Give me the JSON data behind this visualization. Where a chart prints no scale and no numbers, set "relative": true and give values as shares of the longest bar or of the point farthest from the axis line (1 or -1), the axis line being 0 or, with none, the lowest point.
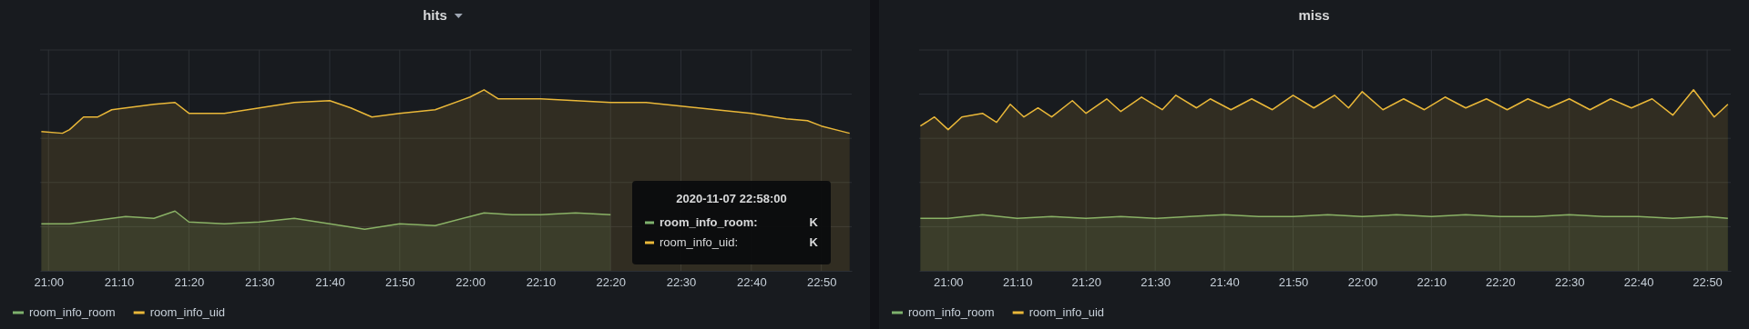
{
  "chart_data": [
    {
      "type": "area",
      "title": "hits",
      "relative": true,
      "grid": true,
      "legend": "bottom",
      "line_style": "solid",
      "xlim": [
        20.98,
        22.905
      ],
      "xticks": [
        {
          "value": 21,
          "label": "21:00"
        },
        {
          "value": 21.167,
          "label": "21:10"
        },
        {
          "value": 21.333,
          "label": "21:20"
        },
        {
          "value": 21.5,
          "label": "21:30"
        },
        {
          "value": 21.667,
          "label": "21:40"
        },
        {
          "value": 21.833,
          "label": "21:50"
        },
        {
          "value": 22,
          "label": "22:00"
        },
        {
          "value": 22.167,
          "label": "22:10"
        },
        {
          "value": 22.333,
          "label": "22:20"
        },
        {
          "value": 22.5,
          "label": "22:30"
        },
        {
          "value": 22.667,
          "label": "22:40"
        },
        {
          "value": 22.833,
          "label": "22:50"
        }
      ],
      "annotations": [
        "2020-11-07 22:58:00",
        "room_info_room:",
        "K",
        "room_info_uid:",
        "K"
      ],
      "series": [
        {
          "name": "room_info_room",
          "color": "#7eb26d",
          "x": [
            20.983,
            21.05,
            21.117,
            21.183,
            21.25,
            21.3,
            21.333,
            21.417,
            21.5,
            21.583,
            21.667,
            21.75,
            21.833,
            21.917,
            22.0,
            22.033,
            22.1,
            22.167,
            22.25,
            22.333
          ],
          "values": [
            0.26,
            0.26,
            0.28,
            0.3,
            0.29,
            0.33,
            0.27,
            0.26,
            0.27,
            0.29,
            0.26,
            0.23,
            0.26,
            0.25,
            0.3,
            0.32,
            0.31,
            0.31,
            0.32,
            0.31
          ]
        },
        {
          "name": "room_info_uid",
          "color": "#eab839",
          "x": [
            20.983,
            21.033,
            21.05,
            21.083,
            21.117,
            21.15,
            21.183,
            21.217,
            21.25,
            21.3,
            21.333,
            21.417,
            21.5,
            21.583,
            21.667,
            21.717,
            21.767,
            21.833,
            21.917,
            22.0,
            22.033,
            22.067,
            22.117,
            22.167,
            22.25,
            22.333,
            22.417,
            22.5,
            22.583,
            22.667,
            22.75,
            22.8,
            22.833,
            22.883,
            22.9
          ],
          "values": [
            0.77,
            0.76,
            0.78,
            0.85,
            0.85,
            0.89,
            0.9,
            0.91,
            0.92,
            0.93,
            0.87,
            0.87,
            0.9,
            0.93,
            0.94,
            0.9,
            0.85,
            0.87,
            0.89,
            0.96,
            1.0,
            0.95,
            0.95,
            0.95,
            0.94,
            0.93,
            0.93,
            0.91,
            0.89,
            0.87,
            0.84,
            0.83,
            0.8,
            0.77,
            0.76
          ]
        }
      ]
    },
    {
      "type": "area",
      "title": "miss",
      "relative": true,
      "grid": true,
      "legend": "bottom",
      "line_style": "solid",
      "xlim": [
        20.93,
        22.89
      ],
      "xticks": [
        {
          "value": 21,
          "label": "21:00"
        },
        {
          "value": 21.167,
          "label": "21:10"
        },
        {
          "value": 21.333,
          "label": "21:20"
        },
        {
          "value": 21.5,
          "label": "21:30"
        },
        {
          "value": 21.667,
          "label": "21:40"
        },
        {
          "value": 21.833,
          "label": "21:50"
        },
        {
          "value": 22,
          "label": "22:00"
        },
        {
          "value": 22.167,
          "label": "22:10"
        },
        {
          "value": 22.333,
          "label": "22:20"
        },
        {
          "value": 22.5,
          "label": "22:30"
        },
        {
          "value": 22.667,
          "label": "22:40"
        },
        {
          "value": 22.833,
          "label": "22:50"
        }
      ],
      "series": [
        {
          "name": "room_info_room",
          "color": "#7eb26d",
          "x": [
            20.933,
            21.0,
            21.083,
            21.167,
            21.25,
            21.333,
            21.417,
            21.5,
            21.583,
            21.667,
            21.75,
            21.833,
            21.917,
            22.0,
            22.083,
            22.167,
            22.25,
            22.333,
            22.417,
            22.5,
            22.583,
            22.667,
            22.75,
            22.833,
            22.883
          ],
          "values": [
            0.29,
            0.29,
            0.31,
            0.29,
            0.3,
            0.29,
            0.3,
            0.29,
            0.3,
            0.31,
            0.3,
            0.3,
            0.31,
            0.3,
            0.31,
            0.3,
            0.31,
            0.3,
            0.3,
            0.31,
            0.3,
            0.3,
            0.29,
            0.3,
            0.29
          ]
        },
        {
          "name": "room_info_uid",
          "color": "#eab839",
          "x": [
            20.933,
            20.967,
            21.0,
            21.033,
            21.083,
            21.117,
            21.15,
            21.183,
            21.217,
            21.25,
            21.3,
            21.333,
            21.383,
            21.417,
            21.467,
            21.517,
            21.55,
            21.6,
            21.633,
            21.683,
            21.733,
            21.783,
            21.833,
            21.883,
            21.933,
            21.967,
            22.0,
            22.05,
            22.1,
            22.15,
            22.2,
            22.25,
            22.3,
            22.35,
            22.4,
            22.45,
            22.5,
            22.55,
            22.6,
            22.65,
            22.7,
            22.75,
            22.8,
            22.85,
            22.883
          ],
          "values": [
            0.8,
            0.85,
            0.78,
            0.85,
            0.87,
            0.82,
            0.92,
            0.85,
            0.9,
            0.85,
            0.94,
            0.87,
            0.95,
            0.88,
            0.96,
            0.89,
            0.97,
            0.9,
            0.95,
            0.89,
            0.95,
            0.89,
            0.97,
            0.9,
            0.97,
            0.9,
            0.99,
            0.89,
            0.95,
            0.89,
            0.96,
            0.9,
            0.95,
            0.89,
            0.95,
            0.9,
            0.95,
            0.89,
            0.95,
            0.9,
            0.95,
            0.86,
            1.0,
            0.85,
            0.92
          ]
        }
      ]
    }
  ]
}
